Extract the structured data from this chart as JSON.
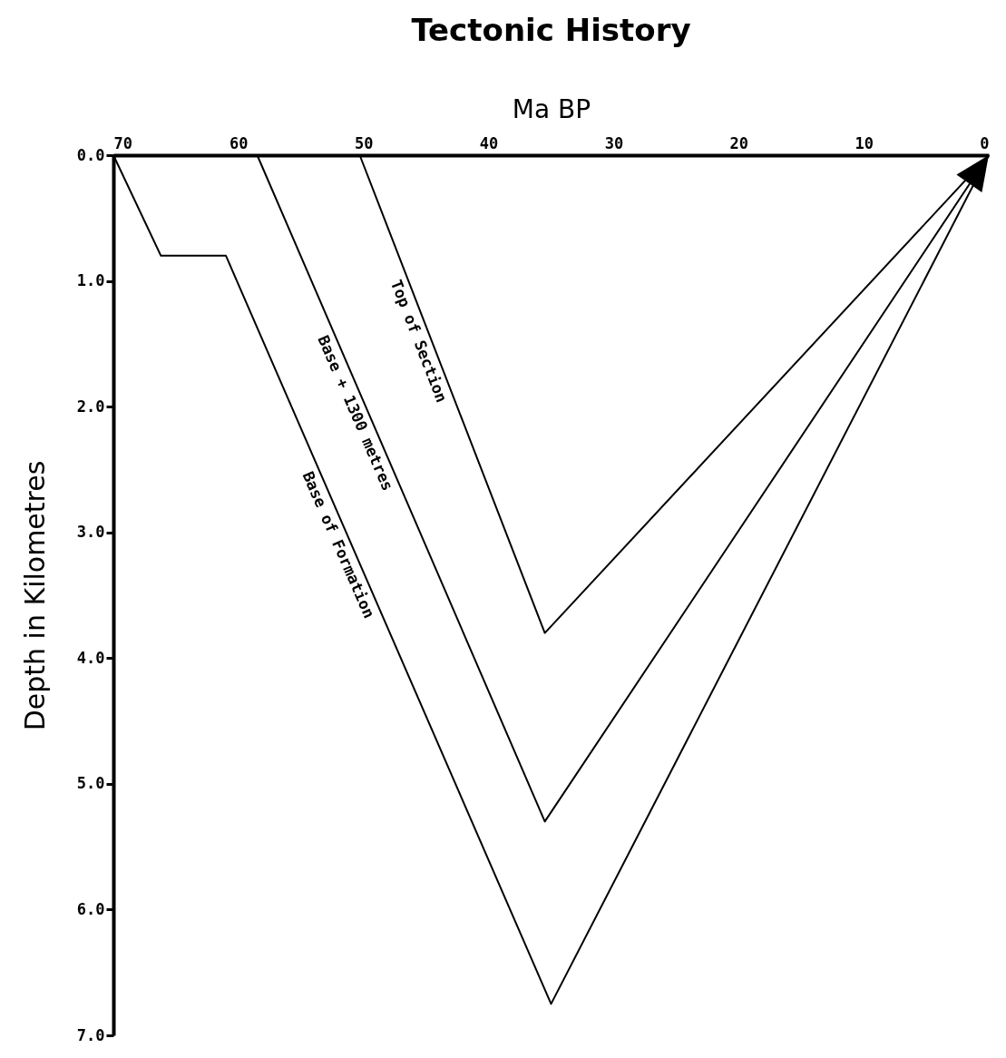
{
  "chart_data": {
    "type": "line",
    "title": "Tectonic History",
    "xlabel": "Ma BP",
    "ylabel": "Depth in Kilometres",
    "xlim": [
      70,
      0
    ],
    "xticks": [
      70,
      60,
      50,
      40,
      30,
      20,
      10,
      0
    ],
    "ylim": [
      7,
      0
    ],
    "yticks": [
      {
        "value": 0,
        "label": "0.0"
      },
      {
        "value": 1,
        "label": "1.0"
      },
      {
        "value": 2,
        "label": "2.0"
      },
      {
        "value": 3,
        "label": "3.0"
      },
      {
        "value": 4,
        "label": "4.0"
      },
      {
        "value": 5,
        "label": "5.0"
      },
      {
        "value": 6,
        "label": "6.0"
      },
      {
        "value": 7,
        "label": "7.0"
      }
    ],
    "series": [
      {
        "name": "Base of Formation",
        "color": "#000000",
        "x": [
          70,
          66.2,
          61.0,
          35.0,
          0
        ],
        "values": [
          0,
          0.8,
          0.8,
          6.75,
          0
        ]
      },
      {
        "name": "Base + 1300 metres",
        "color": "#000000",
        "x": [
          58.5,
          35.5,
          0
        ],
        "values": [
          0,
          5.3,
          0
        ]
      },
      {
        "name": "Top of Section",
        "color": "#000000",
        "x": [
          50.3,
          35.5,
          0
        ],
        "values": [
          0,
          3.8,
          0
        ]
      }
    ],
    "grid": false,
    "legend": false,
    "marker": "none",
    "line_style": "solid"
  }
}
